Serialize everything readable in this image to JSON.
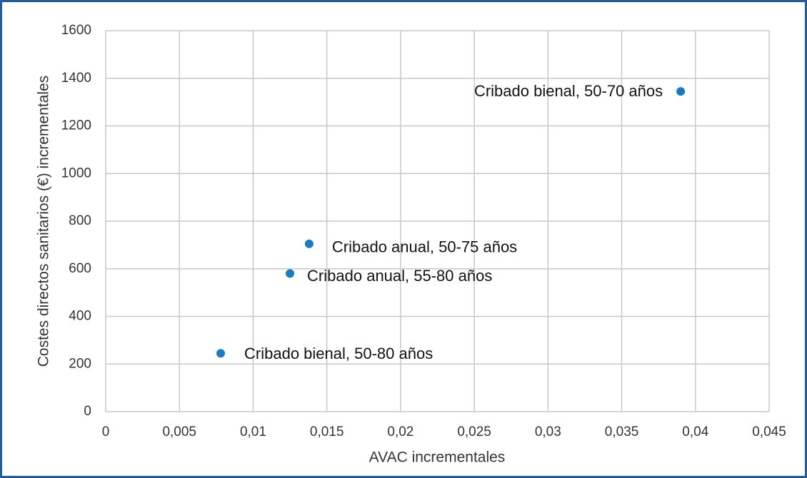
{
  "chart_data": {
    "type": "scatter",
    "x_label": "AVAC incrementales",
    "y_label": "Costes directos sanitarios (€) incrementales",
    "x": [
      0.0078,
      0.0125,
      0.0138,
      0.039
    ],
    "y": [
      245,
      580,
      705,
      1345
    ],
    "labels": [
      "Cribado bienal, 50-80 años",
      "Cribado anual, 55-80 años",
      "Cribado anual, 50-75 años",
      "Cribado bienal, 50-70 años"
    ],
    "color": "#1b7bc0",
    "xlim": [
      0,
      0.045
    ],
    "xticks": [
      0,
      {
        "value": 0.005,
        "label": "0,005"
      },
      {
        "value": 0.01,
        "label": "0,01"
      },
      {
        "value": 0.015,
        "label": "0,015"
      },
      {
        "value": 0.02,
        "label": "0,02"
      },
      {
        "value": 0.025,
        "label": "0,025"
      },
      {
        "value": 0.03,
        "label": "0,03"
      },
      {
        "value": 0.035,
        "label": "0,035"
      },
      {
        "value": 0.04,
        "label": "0,04"
      },
      {
        "value": 0.045,
        "label": "0,045"
      }
    ],
    "ylim": [
      0,
      1600
    ],
    "yticks": [
      0,
      200,
      400,
      600,
      800,
      1000,
      1200,
      1400,
      1600
    ],
    "grid": true
  }
}
